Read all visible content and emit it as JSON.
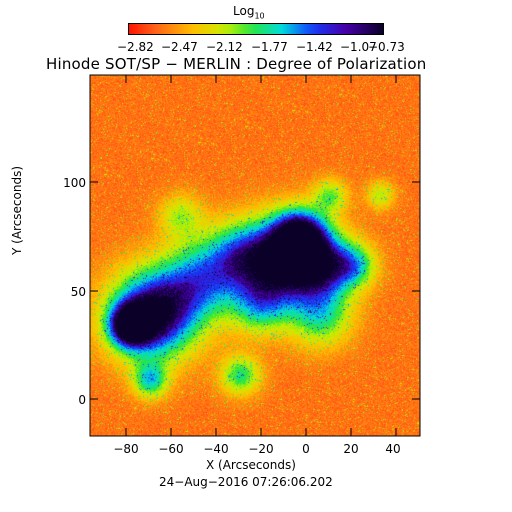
{
  "colorbar": {
    "label_base": "Log",
    "label_sub": "10",
    "ticks": [
      "−2.82",
      "−2.47",
      "−2.12",
      "−1.77",
      "−1.42",
      "−1.07",
      "−0.73"
    ]
  },
  "title": "Hinode SOT/SP − MERLIN : Degree of Polarization",
  "axes": {
    "xlabel": "X (Arcseconds)",
    "ylabel": "Y (Arcseconds)",
    "x_ticks": [
      "−80",
      "−60",
      "−40",
      "−20",
      "0",
      "20",
      "40"
    ],
    "y_ticks": [
      "0",
      "50",
      "100"
    ]
  },
  "timestamp": "24−Aug−2016 07:26:06.202",
  "colors": {
    "background_field": "#ff6a1e",
    "strong_polarization": "#3a0090"
  }
}
